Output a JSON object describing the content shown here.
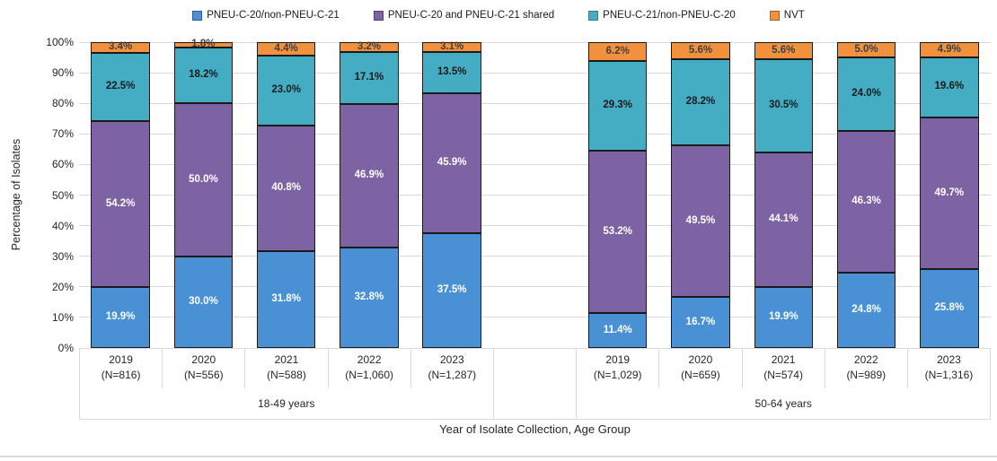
{
  "chart_data": {
    "type": "bar",
    "stacked": true,
    "percent_stacked": true,
    "title": "",
    "ylabel": "Percentage of Isolates",
    "xlabel": "Year of Isolate Collection, Age Group",
    "ylim": [
      0,
      100
    ],
    "ytick_step": 10,
    "yticks": [
      "0%",
      "10%",
      "20%",
      "30%",
      "40%",
      "50%",
      "60%",
      "70%",
      "80%",
      "90%",
      "100%"
    ],
    "grid": "horizontal",
    "legend_position": "top-center",
    "gridline_color": "#d9d9d9",
    "axis_box_color": "#d9d9d9",
    "bar_border_color": "#1a1a1a",
    "groups": [
      {
        "label": "18-49 years",
        "span": 5
      },
      {
        "label": "50-64 years",
        "span": 5
      }
    ],
    "categories": [
      {
        "year": "2019",
        "n": "(N=816)",
        "group": "18-49 years"
      },
      {
        "year": "2020",
        "n": "(N=556)",
        "group": "18-49 years"
      },
      {
        "year": "2021",
        "n": "(N=588)",
        "group": "18-49 years"
      },
      {
        "year": "2022",
        "n": "(N=1,060)",
        "group": "18-49 years"
      },
      {
        "year": "2023",
        "n": "(N=1,287)",
        "group": "18-49 years"
      },
      {
        "year": "2019",
        "n": "(N=1,029)",
        "group": "50-64 years"
      },
      {
        "year": "2020",
        "n": "(N=659)",
        "group": "50-64 years"
      },
      {
        "year": "2021",
        "n": "(N=574)",
        "group": "50-64 years"
      },
      {
        "year": "2022",
        "n": "(N=989)",
        "group": "50-64 years"
      },
      {
        "year": "2023",
        "n": "(N=1,316)",
        "group": "50-64 years"
      }
    ],
    "series": [
      {
        "name": "PNEU-C-20/non-PNEU-C-21",
        "color": "#4a90d5",
        "marker_border": "#2c5f94",
        "label_color": "#ffffff",
        "values": [
          19.9,
          30.0,
          31.8,
          32.8,
          37.5,
          11.4,
          16.7,
          19.9,
          24.8,
          25.8
        ],
        "labels": [
          "19.9%",
          "30.0%",
          "31.8%",
          "32.8%",
          "37.5%",
          "11.4%",
          "16.7%",
          "19.9%",
          "24.8%",
          "25.8%"
        ]
      },
      {
        "name": "PNEU-C-20 and PNEU-C-21 shared",
        "color": "#7d63a3",
        "marker_border": "#55426f",
        "label_color": "#ffffff",
        "values": [
          54.2,
          50.0,
          40.8,
          46.9,
          45.9,
          53.2,
          49.5,
          44.1,
          46.3,
          49.7
        ],
        "labels": [
          "54.2%",
          "50.0%",
          "40.8%",
          "46.9%",
          "45.9%",
          "53.2%",
          "49.5%",
          "44.1%",
          "46.3%",
          "49.7%"
        ]
      },
      {
        "name": "PNEU-C-21/non-PNEU-C-20",
        "color": "#44adc4",
        "marker_border": "#2e7d93",
        "label_color": "#1a1a1a",
        "values": [
          22.5,
          18.2,
          23.0,
          17.1,
          13.5,
          29.3,
          28.2,
          30.5,
          24.0,
          19.6
        ],
        "labels": [
          "22.5%",
          "18.2%",
          "23.0%",
          "17.1%",
          "13.5%",
          "29.3%",
          "28.2%",
          "30.5%",
          "24.0%",
          "19.6%"
        ]
      },
      {
        "name": "NVT",
        "color": "#f2913d",
        "marker_border": "#b05e1e",
        "label_color": "#404040",
        "values": [
          3.4,
          1.8,
          4.4,
          3.2,
          3.1,
          6.2,
          5.6,
          5.6,
          5.0,
          4.9
        ],
        "labels": [
          "3.4%",
          "1.8%",
          "4.4%",
          "3.2%",
          "3.1%",
          "6.2%",
          "5.6%",
          "5.6%",
          "5.0%",
          "4.9%"
        ]
      }
    ]
  }
}
